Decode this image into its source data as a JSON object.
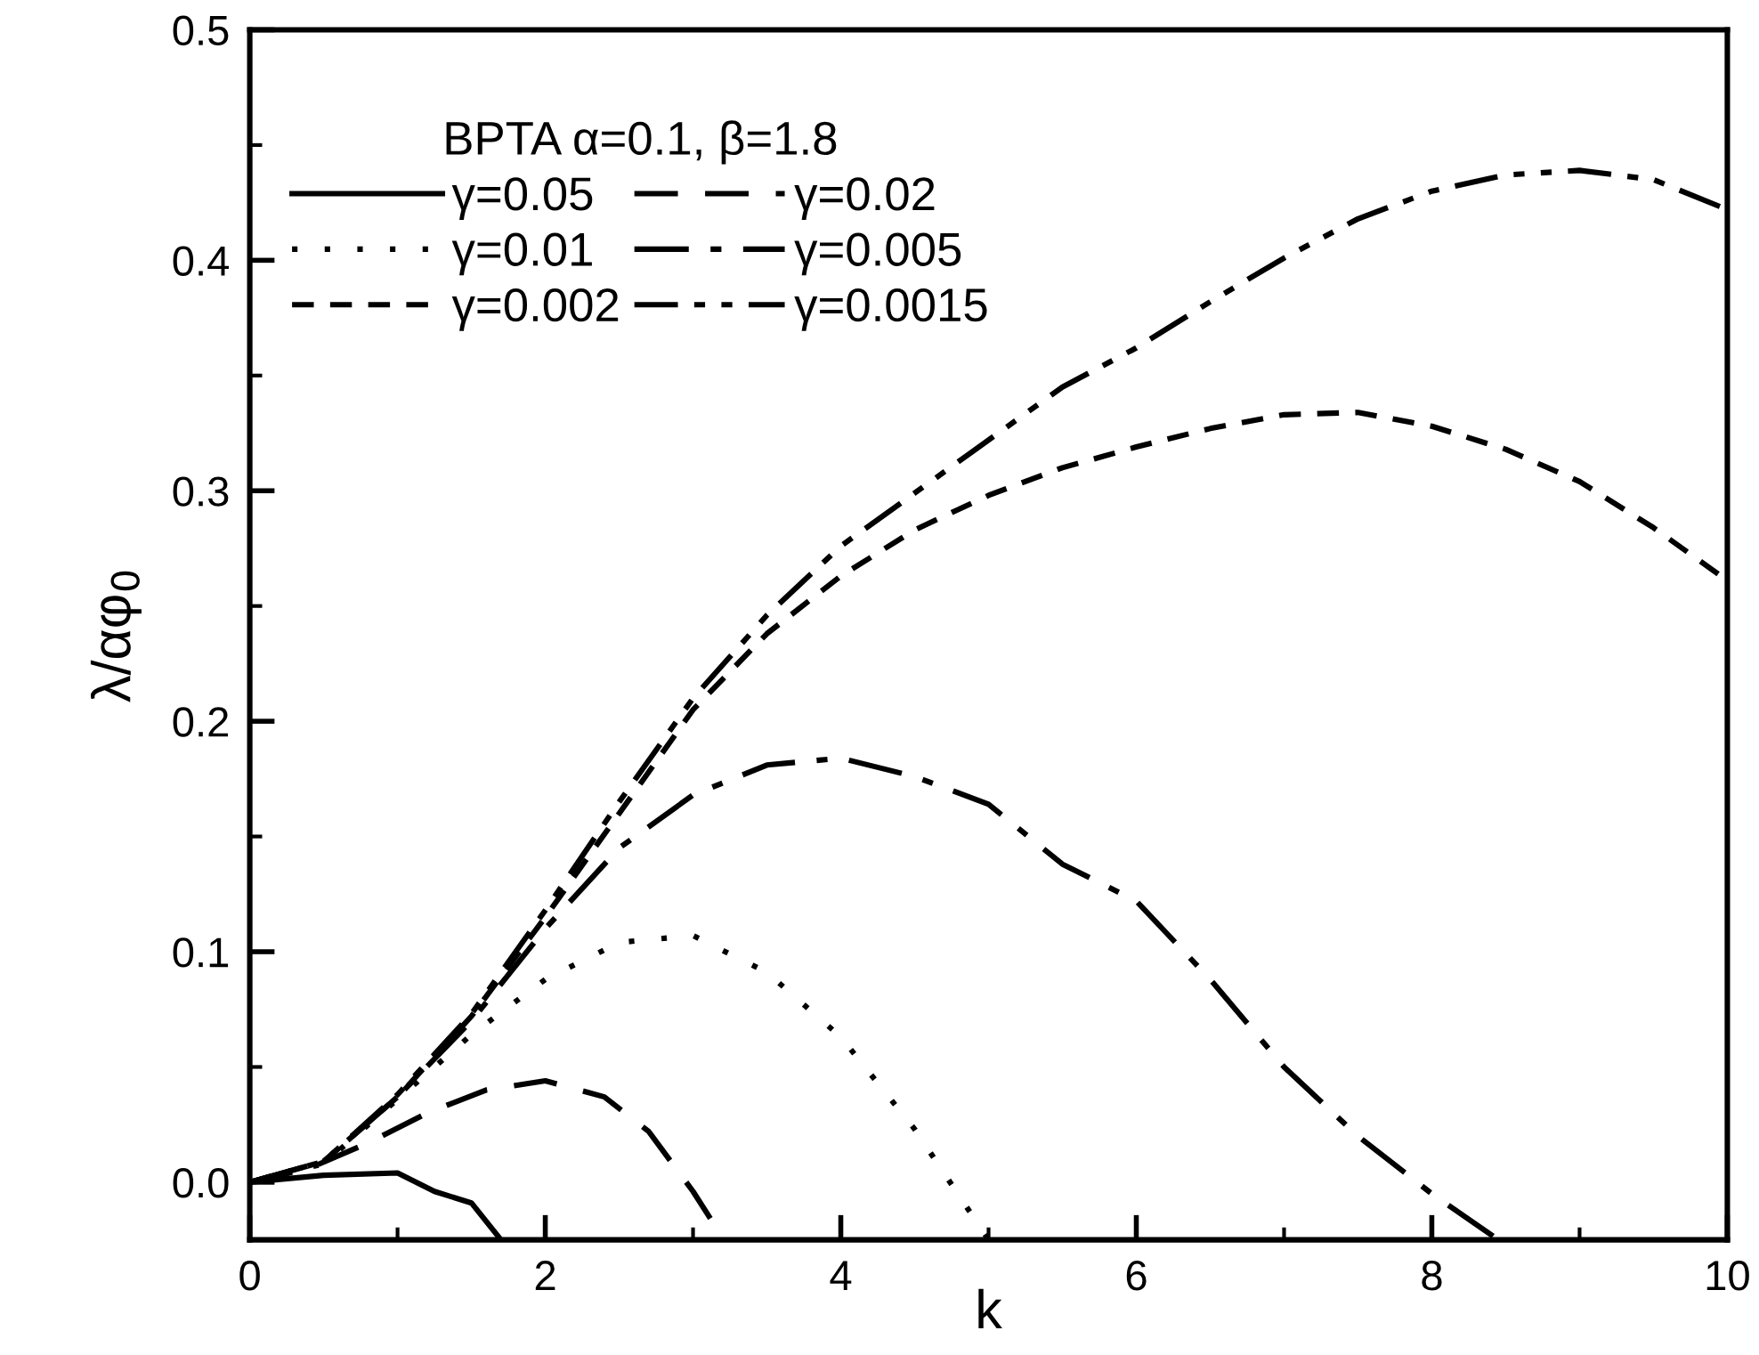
{
  "chart_data": {
    "type": "line",
    "xlabel": "k",
    "ylabel": "λ/αφ$_{0}$",
    "legend_title": "BPTA α=0.1, β=1.8",
    "legend": "top left",
    "grid": false,
    "marker": "none",
    "xlim": [
      0,
      10
    ],
    "xticks": [
      0,
      2,
      4,
      6,
      8,
      10
    ],
    "ylim": [
      -0.025,
      0.5
    ],
    "yticks": [
      {
        "value": 0.0,
        "label": "0.0"
      },
      0.1,
      0.2,
      0.3,
      0.4,
      0.5
    ],
    "series": [
      {
        "name": "γ=0.05",
        "color": "#000000",
        "line_style": "solid",
        "x": [
          0,
          0.5,
          1.0,
          1.25,
          1.5,
          1.7
        ],
        "values": [
          0,
          0.003,
          0.004,
          -0.004,
          -0.009,
          -0.025
        ]
      },
      {
        "name": "γ=0.02",
        "color": "#000000",
        "line_style": "dashed",
        "x": [
          0,
          0.4,
          0.8,
          1.2,
          1.6,
          2.0,
          2.4,
          2.7,
          3.0,
          3.2
        ],
        "values": [
          0,
          0.006,
          0.017,
          0.03,
          0.04,
          0.044,
          0.037,
          0.022,
          -0.004,
          -0.024
        ]
      },
      {
        "name": "γ=0.01",
        "color": "#000000",
        "line_style": "dotted",
        "x": [
          0,
          0.5,
          1.0,
          1.5,
          2.0,
          2.5,
          3.0,
          3.5,
          4.0,
          4.5,
          5.0
        ],
        "values": [
          0,
          0.008,
          0.036,
          0.064,
          0.088,
          0.104,
          0.107,
          0.091,
          0.063,
          0.023,
          -0.025
        ]
      },
      {
        "name": "γ=0.005",
        "color": "#000000",
        "line_style": "dashdot",
        "x": [
          0,
          0.5,
          1,
          1.5,
          2,
          2.5,
          3,
          3.5,
          4,
          4.5,
          5,
          5.5,
          6,
          6.5,
          7,
          7.5,
          8,
          8.45
        ],
        "values": [
          0,
          0.009,
          0.037,
          0.07,
          0.11,
          0.145,
          0.168,
          0.181,
          0.184,
          0.176,
          0.164,
          0.138,
          0.122,
          0.088,
          0.05,
          0.02,
          -0.005,
          -0.025
        ]
      },
      {
        "name": "γ=0.002",
        "color": "#000000",
        "line_style": "shortdash",
        "x": [
          0,
          0.5,
          1,
          1.5,
          2,
          2.5,
          3,
          3.5,
          4,
          4.5,
          5,
          5.5,
          6,
          6.5,
          7,
          7.5,
          8,
          8.5,
          9,
          9.5,
          10
        ],
        "values": [
          0,
          0.009,
          0.037,
          0.072,
          0.115,
          0.16,
          0.205,
          0.238,
          0.263,
          0.283,
          0.298,
          0.31,
          0.319,
          0.327,
          0.333,
          0.334,
          0.328,
          0.318,
          0.304,
          0.284,
          0.261
        ]
      },
      {
        "name": "γ=0.0015",
        "color": "#000000",
        "line_style": "dashdotdot",
        "x": [
          0,
          0.5,
          1,
          1.5,
          2,
          2.5,
          3,
          3.5,
          4,
          4.5,
          5,
          5.5,
          6,
          6.5,
          7,
          7.5,
          8,
          8.5,
          9,
          9.5,
          10
        ],
        "values": [
          0,
          0.009,
          0.038,
          0.073,
          0.118,
          0.165,
          0.21,
          0.246,
          0.276,
          0.299,
          0.322,
          0.345,
          0.362,
          0.382,
          0.401,
          0.418,
          0.43,
          0.437,
          0.439,
          0.435,
          0.422
        ]
      }
    ]
  }
}
